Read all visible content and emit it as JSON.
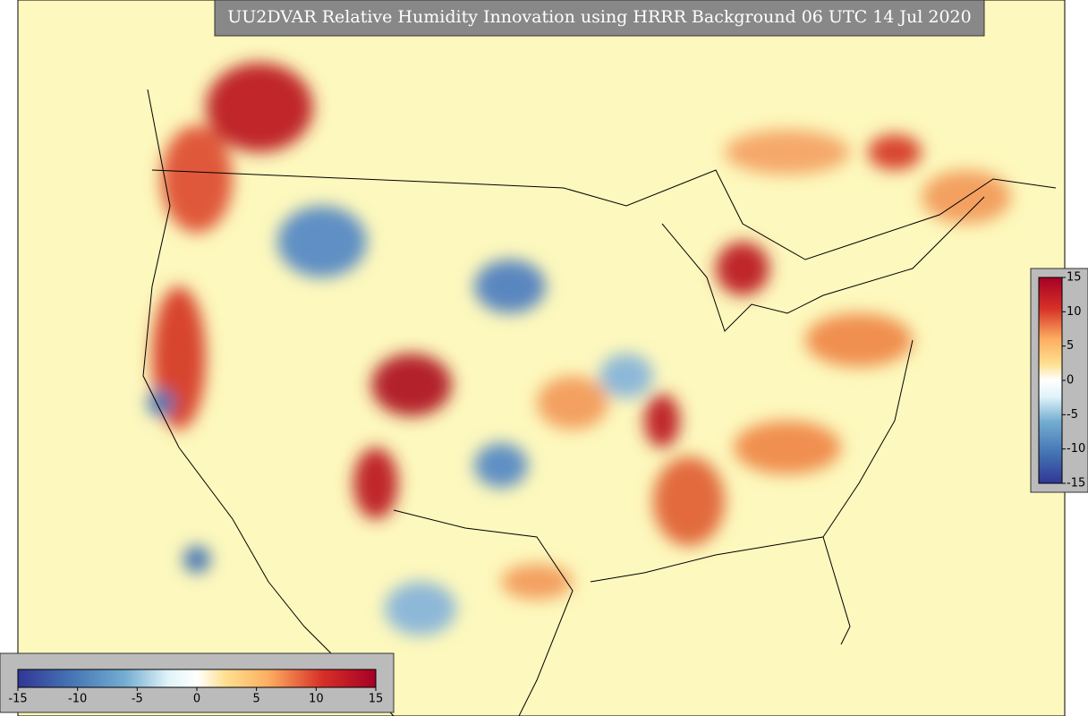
{
  "title": "UU2DVAR Relative Humidity Innovation using HRRR Background 06 UTC 14 Jul 2020",
  "colorbar_horizontal": {
    "range": [
      -15,
      15
    ],
    "ticks": [
      -15,
      -10,
      -5,
      0,
      5,
      10,
      15
    ]
  },
  "colorbar_vertical": {
    "range": [
      -15,
      15
    ],
    "ticks": [
      15,
      10,
      5,
      0,
      -5,
      -10,
      -15
    ]
  }
}
